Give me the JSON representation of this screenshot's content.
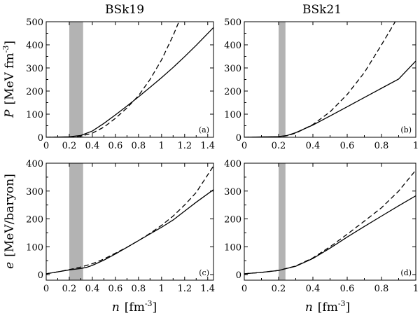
{
  "column_titles": [
    "BSk19",
    "BSk21"
  ],
  "y_labels": {
    "top": {
      "symbol": "P",
      "unit": "[MeV fm",
      "exp": "-3",
      "close": "]"
    },
    "bottom": {
      "symbol": "e",
      "unit": "[MeV/baryon]"
    }
  },
  "x_label": {
    "symbol": "n",
    "unit": "[fm",
    "exp": "-3",
    "close": "]"
  },
  "chart_data": [
    {
      "type": "line",
      "id": "a",
      "panel_label": "(a)",
      "xlim": [
        0,
        1.45
      ],
      "ylim": [
        0,
        500
      ],
      "xticks": [
        0,
        0.2,
        0.4,
        0.6,
        0.8,
        1,
        1.2,
        1.4
      ],
      "xtick_labels": [
        "0",
        "0.2",
        "0.4",
        "0.6",
        "0.8",
        "1",
        "1.2",
        "1.4"
      ],
      "yticks": [
        0,
        100,
        200,
        300,
        400,
        500
      ],
      "ytick_labels": [
        "0",
        "100",
        "200",
        "300",
        "400",
        "500"
      ],
      "shaded_band": [
        0.2,
        0.32
      ],
      "series": [
        {
          "style": "solid",
          "x": [
            0,
            0.2,
            0.3,
            0.4,
            0.5,
            0.6,
            0.7,
            0.8,
            0.9,
            1.0,
            1.1,
            1.2,
            1.3,
            1.45
          ],
          "y": [
            0,
            2,
            8,
            27,
            60,
            97,
            135,
            175,
            216,
            258,
            302,
            349,
            398,
            475
          ]
        },
        {
          "style": "dashed",
          "x": [
            0,
            0.2,
            0.3,
            0.4,
            0.5,
            0.6,
            0.7,
            0.8,
            0.9,
            1.0,
            1.1,
            1.15
          ],
          "y": [
            0,
            1,
            5,
            18,
            44,
            82,
            127,
            180,
            250,
            335,
            440,
            500
          ]
        }
      ]
    },
    {
      "type": "line",
      "id": "b",
      "panel_label": "(b)",
      "xlim": [
        0,
        1.0
      ],
      "ylim": [
        0,
        500
      ],
      "xticks": [
        0,
        0.2,
        0.4,
        0.6,
        0.8,
        1
      ],
      "xtick_labels": [
        "0",
        "0.2",
        "0.4",
        "0.6",
        "0.8",
        "1"
      ],
      "yticks": [
        0,
        100,
        200,
        300,
        400,
        500
      ],
      "ytick_labels": [
        "0",
        "100",
        "200",
        "300",
        "400",
        "500"
      ],
      "shaded_band": [
        0.2,
        0.24
      ],
      "series": [
        {
          "style": "solid",
          "x": [
            0,
            0.2,
            0.25,
            0.3,
            0.4,
            0.5,
            0.6,
            0.7,
            0.8,
            0.9,
            1.0
          ],
          "y": [
            0,
            3,
            8,
            20,
            53,
            92,
            132,
            172,
            212,
            252,
            330
          ]
        },
        {
          "style": "dashed",
          "x": [
            0,
            0.2,
            0.25,
            0.3,
            0.4,
            0.5,
            0.6,
            0.7,
            0.8,
            0.88
          ],
          "y": [
            0,
            2,
            7,
            18,
            55,
            110,
            185,
            280,
            400,
            500
          ]
        }
      ]
    },
    {
      "type": "line",
      "id": "c",
      "panel_label": "(c)",
      "xlim": [
        0,
        1.45
      ],
      "ylim": [
        -20,
        400
      ],
      "xticks": [
        0,
        0.2,
        0.4,
        0.6,
        0.8,
        1,
        1.2,
        1.4
      ],
      "xtick_labels": [
        "0",
        "0.2",
        "0.4",
        "0.6",
        "0.8",
        "1",
        "1.2",
        "1.4"
      ],
      "yticks": [
        0,
        100,
        200,
        300,
        400
      ],
      "ytick_labels": [
        "0",
        "100",
        "200",
        "300",
        "400"
      ],
      "shaded_band": [
        0.2,
        0.32
      ],
      "series": [
        {
          "style": "solid",
          "x": [
            0,
            0.1,
            0.2,
            0.3,
            0.35,
            0.4,
            0.5,
            0.6,
            0.7,
            0.8,
            0.9,
            1.0,
            1.1,
            1.2,
            1.3,
            1.45
          ],
          "y": [
            3,
            10,
            17,
            22,
            26,
            33,
            52,
            74,
            98,
            122,
            146,
            170,
            196,
            228,
            260,
            305
          ]
        },
        {
          "style": "dashed",
          "x": [
            0,
            0.1,
            0.2,
            0.3,
            0.4,
            0.5,
            0.6,
            0.7,
            0.8,
            0.9,
            1.0,
            1.1,
            1.2,
            1.3,
            1.45
          ],
          "y": [
            3,
            10,
            18,
            27,
            39,
            56,
            77,
            98,
            122,
            148,
            177,
            210,
            250,
            295,
            390
          ]
        }
      ]
    },
    {
      "type": "line",
      "id": "d",
      "panel_label": "(d)",
      "xlim": [
        0,
        1.0
      ],
      "ylim": [
        -20,
        400
      ],
      "xticks": [
        0,
        0.2,
        0.4,
        0.6,
        0.8,
        1
      ],
      "xtick_labels": [
        "0",
        "0.2",
        "0.4",
        "0.6",
        "0.8",
        "1"
      ],
      "yticks": [
        0,
        100,
        200,
        300,
        400
      ],
      "ytick_labels": [
        "0",
        "100",
        "200",
        "300",
        "400"
      ],
      "shaded_band": [
        0.2,
        0.24
      ],
      "series": [
        {
          "style": "solid",
          "x": [
            0,
            0.1,
            0.2,
            0.3,
            0.4,
            0.5,
            0.6,
            0.7,
            0.8,
            0.9,
            1.0
          ],
          "y": [
            3,
            8,
            15,
            30,
            58,
            95,
            135,
            173,
            210,
            247,
            283
          ]
        },
        {
          "style": "dashed",
          "x": [
            0,
            0.1,
            0.2,
            0.3,
            0.4,
            0.5,
            0.6,
            0.7,
            0.8,
            0.9,
            1.0
          ],
          "y": [
            3,
            8,
            15,
            31,
            60,
            100,
            145,
            192,
            240,
            300,
            375
          ]
        }
      ]
    }
  ]
}
